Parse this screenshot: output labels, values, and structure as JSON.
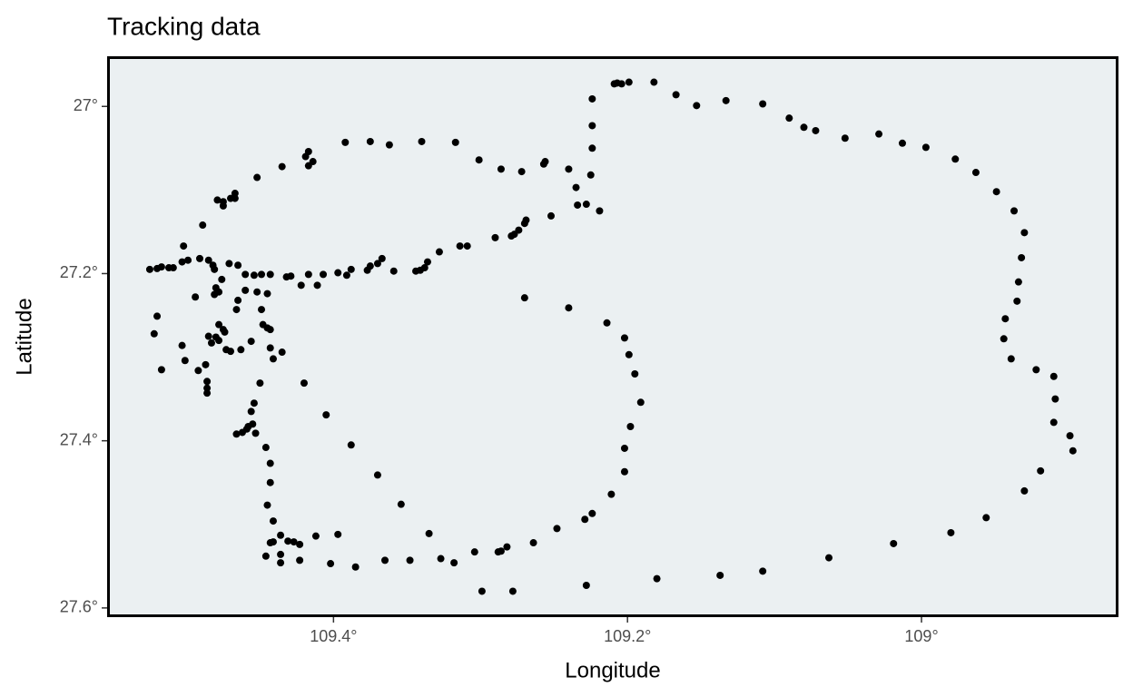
{
  "chart_data": {
    "type": "scatter",
    "title": "Tracking data",
    "x_label": "Longitude",
    "y_label": "Latitude",
    "color": "#000000",
    "background": "#ebf0f2",
    "xlim": [
      109.554,
      108.866
    ],
    "ylim": [
      27.611,
      26.94
    ],
    "xticks": [
      {
        "value": 109.4,
        "label": "109.4°"
      },
      {
        "value": 109.2,
        "label": "109.2°"
      },
      {
        "value": 109,
        "label": "109°"
      }
    ],
    "yticks": [
      {
        "value": 27,
        "label": "27°"
      },
      {
        "value": 27.2,
        "label": "27.2°"
      },
      {
        "value": 27.4,
        "label": "27.4°"
      },
      {
        "value": 27.6,
        "label": "27.6°"
      }
    ],
    "x": [
      109.207,
      109.209,
      109.204,
      109.199,
      109.182,
      109.167,
      109.153,
      109.133,
      109.108,
      109.09,
      109.08,
      109.072,
      109.052,
      109.029,
      109.013,
      108.997,
      108.977,
      108.963,
      108.949,
      108.937,
      108.93,
      108.932,
      108.934,
      108.935,
      108.943,
      108.944,
      108.939,
      108.922,
      108.91,
      108.909,
      108.91,
      108.899,
      108.897,
      108.919,
      108.93,
      108.956,
      108.98,
      109.019,
      109.063,
      109.108,
      109.137,
      109.18,
      109.228,
      109.278,
      109.299,
      109.224,
      109.224,
      109.224,
      109.225,
      109.219,
      109.228,
      109.234,
      109.235,
      109.24,
      109.256,
      109.257,
      109.272,
      109.286,
      109.301,
      109.317,
      109.34,
      109.362,
      109.375,
      109.392,
      109.417,
      109.414,
      109.417,
      109.419,
      109.435,
      109.452,
      109.467,
      109.47,
      109.467,
      109.475,
      109.479,
      109.475,
      109.489,
      109.502,
      109.252,
      109.269,
      109.27,
      109.274,
      109.277,
      109.279,
      109.29,
      109.309,
      109.314,
      109.328,
      109.336,
      109.338,
      109.341,
      109.344,
      109.359,
      109.367,
      109.37,
      109.375,
      109.377,
      109.388,
      109.391,
      109.397,
      109.407,
      109.411,
      109.417,
      109.422,
      109.429,
      109.432,
      109.443,
      109.449,
      109.454,
      109.46,
      109.465,
      109.471,
      109.481,
      109.485,
      109.491,
      109.499,
      109.503,
      109.509,
      109.512,
      109.517,
      109.52,
      109.525,
      109.27,
      109.24,
      109.214,
      109.202,
      109.199,
      109.195,
      109.191,
      109.198,
      109.202,
      109.202,
      109.211,
      109.224,
      109.229,
      109.248,
      109.264,
      109.282,
      109.286,
      109.288,
      109.304,
      109.318,
      109.327,
      109.348,
      109.365,
      109.385,
      109.402,
      109.412,
      109.397,
      109.423,
      109.427,
      109.423,
      109.436,
      109.436,
      109.446,
      109.443,
      109.441,
      109.436,
      109.431,
      109.441,
      109.445,
      109.443,
      109.443,
      109.446,
      109.453,
      109.462,
      109.466,
      109.459,
      109.458,
      109.455,
      109.456,
      109.454,
      109.45,
      109.42,
      109.405,
      109.388,
      109.37,
      109.354,
      109.335,
      109.52,
      109.522,
      109.517,
      109.503,
      109.501,
      109.494,
      109.492,
      109.487,
      109.486,
      109.486,
      109.486,
      109.485,
      109.483,
      109.48,
      109.478,
      109.474,
      109.475,
      109.478,
      109.481,
      109.48,
      109.478,
      109.476,
      109.473,
      109.47,
      109.466,
      109.465,
      109.463,
      109.456,
      109.449,
      109.448,
      109.445,
      109.443,
      109.443,
      109.435,
      109.441,
      109.46,
      109.452,
      109.445,
      109.482
    ],
    "y": [
      26.972,
      26.973,
      26.973,
      26.971,
      26.971,
      26.986,
      26.999,
      26.993,
      26.997,
      27.014,
      27.025,
      27.029,
      27.038,
      27.033,
      27.044,
      27.049,
      27.063,
      27.079,
      27.102,
      27.125,
      27.151,
      27.181,
      27.21,
      27.233,
      27.254,
      27.278,
      27.302,
      27.315,
      27.323,
      27.35,
      27.378,
      27.394,
      27.412,
      27.436,
      27.46,
      27.492,
      27.51,
      27.523,
      27.54,
      27.556,
      27.561,
      27.565,
      27.573,
      27.58,
      27.58,
      26.991,
      27.023,
      27.05,
      27.082,
      27.125,
      27.117,
      27.118,
      27.097,
      27.075,
      27.066,
      27.069,
      27.078,
      27.075,
      27.064,
      27.043,
      27.042,
      27.046,
      27.042,
      27.043,
      27.054,
      27.066,
      27.071,
      27.06,
      27.072,
      27.085,
      27.104,
      27.11,
      27.11,
      27.114,
      27.112,
      27.119,
      27.142,
      27.167,
      27.131,
      27.136,
      27.14,
      27.148,
      27.153,
      27.155,
      27.157,
      27.167,
      27.167,
      27.174,
      27.186,
      27.193,
      27.196,
      27.197,
      27.197,
      27.182,
      27.188,
      27.191,
      27.196,
      27.195,
      27.202,
      27.199,
      27.201,
      27.214,
      27.201,
      27.214,
      27.203,
      27.204,
      27.201,
      27.201,
      27.202,
      27.201,
      27.19,
      27.188,
      27.195,
      27.184,
      27.182,
      27.184,
      27.186,
      27.193,
      27.193,
      27.192,
      27.194,
      27.195,
      27.229,
      27.241,
      27.259,
      27.277,
      27.297,
      27.32,
      27.354,
      27.383,
      27.409,
      27.437,
      27.464,
      27.487,
      27.494,
      27.505,
      27.522,
      27.527,
      27.532,
      27.533,
      27.533,
      27.546,
      27.541,
      27.543,
      27.543,
      27.551,
      27.547,
      27.514,
      27.512,
      27.524,
      27.521,
      27.543,
      27.546,
      27.536,
      27.538,
      27.522,
      27.521,
      27.513,
      27.52,
      27.496,
      27.477,
      27.45,
      27.427,
      27.408,
      27.391,
      27.39,
      27.392,
      27.386,
      27.383,
      27.38,
      27.365,
      27.355,
      27.331,
      27.331,
      27.369,
      27.405,
      27.441,
      27.476,
      27.511,
      27.251,
      27.272,
      27.315,
      27.286,
      27.304,
      27.228,
      27.316,
      27.309,
      27.329,
      27.337,
      27.343,
      27.275,
      27.283,
      27.276,
      27.28,
      27.27,
      27.267,
      27.261,
      27.225,
      27.217,
      27.222,
      27.207,
      27.291,
      27.293,
      27.243,
      27.232,
      27.291,
      27.281,
      27.243,
      27.261,
      27.265,
      27.267,
      27.289,
      27.294,
      27.302,
      27.22,
      27.222,
      27.224,
      27.19
    ]
  }
}
